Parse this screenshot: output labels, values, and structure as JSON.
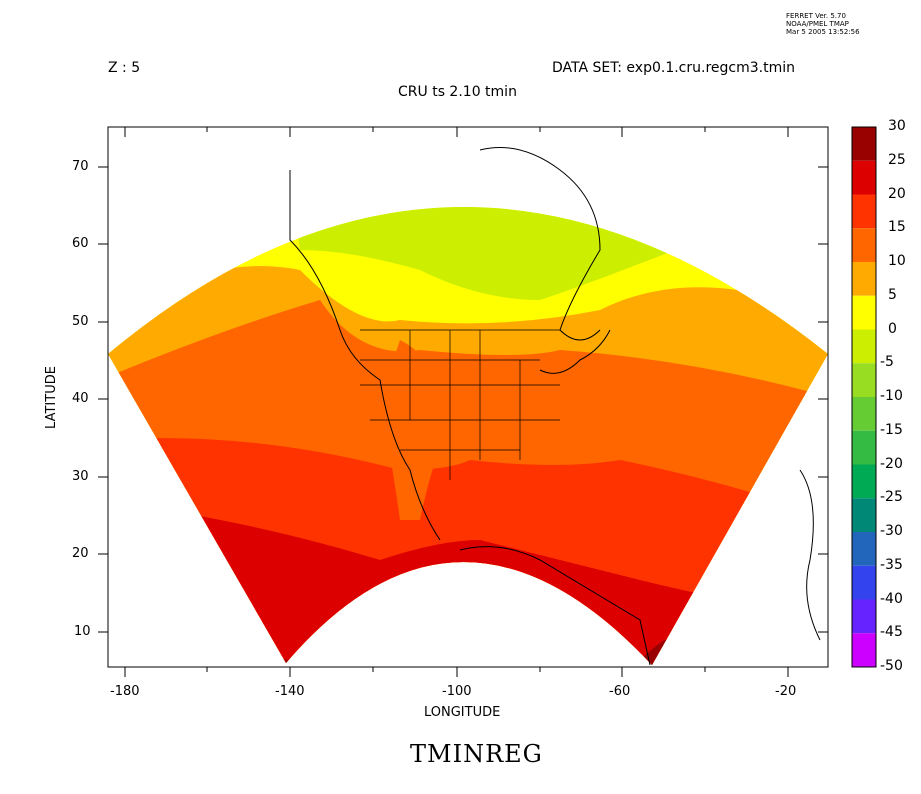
{
  "ferret_stamp": {
    "line1": "FERRET Ver. 5.70",
    "line2": "NOAA/PMEL TMAP",
    "line3": "Mar  5 2005 13:52:56"
  },
  "header": {
    "z_label": "Z : 5",
    "dataset": "DATA SET: exp0.1.cru.regcm3.tmin",
    "plot_title": "CRU ts 2.10 tmin"
  },
  "axes": {
    "xlabel": "LONGITUDE",
    "ylabel": "LATITUDE",
    "x_ticks": [
      "-180",
      "-140",
      "-100",
      "-60",
      "-20"
    ],
    "y_ticks": [
      "70",
      "60",
      "50",
      "40",
      "30",
      "20",
      "10"
    ]
  },
  "colorbar": {
    "levels": [
      "30",
      "25",
      "20",
      "15",
      "10",
      "5",
      "0",
      "-5",
      "-10",
      "-15",
      "-20",
      "-25",
      "-30",
      "-35",
      "-40",
      "-45",
      "-50"
    ],
    "colors": [
      "#990000",
      "#dd0000",
      "#ff3300",
      "#ff6600",
      "#ffaa00",
      "#ffff00",
      "#ccee00",
      "#99dd22",
      "#66cc33",
      "#33bb44",
      "#00aa55",
      "#008877",
      "#2266bb",
      "#3344ee",
      "#6622ff",
      "#cc00ff"
    ]
  },
  "footer": {
    "variable_name": "TMINREG"
  }
}
